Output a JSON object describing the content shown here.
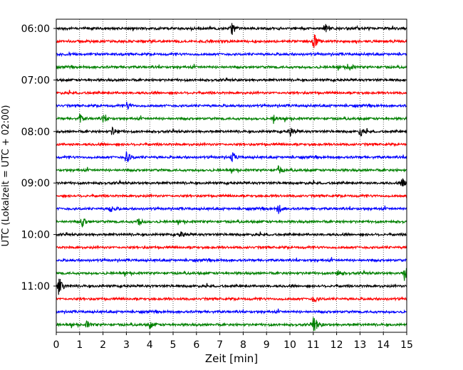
{
  "chart_data": {
    "type": "line",
    "xlabel": "Zeit  [min]",
    "ylabel": "UTC (Lokalzeit = UTC + 02:00)",
    "xlim": [
      0,
      15
    ],
    "x_ticks": [
      0,
      1,
      2,
      3,
      4,
      5,
      6,
      7,
      8,
      9,
      10,
      11,
      12,
      13,
      14,
      15
    ],
    "y_tick_labels": [
      "06:00",
      "07:00",
      "08:00",
      "09:00",
      "10:00",
      "11:00"
    ],
    "trace_start_times": [
      "06:00",
      "06:15",
      "06:30",
      "06:45",
      "07:00",
      "07:15",
      "07:30",
      "07:45",
      "08:00",
      "08:15",
      "08:30",
      "08:45",
      "09:00",
      "09:15",
      "09:30",
      "09:45",
      "10:00",
      "10:15",
      "10:30",
      "10:45",
      "11:00",
      "11:15",
      "11:30",
      "11:45"
    ],
    "trace_colors": [
      "#000000",
      "#ff0000",
      "#0000ff",
      "#008000"
    ],
    "grid_x": true,
    "grid_style": "dotted",
    "events": [
      {
        "trace": 0,
        "minute": 7.5,
        "amp": 0.55
      },
      {
        "trace": 0,
        "minute": 11.5,
        "amp": 0.4
      },
      {
        "trace": 1,
        "minute": 11.0,
        "amp": 0.8
      },
      {
        "trace": 3,
        "minute": 12.5,
        "amp": 0.35
      },
      {
        "trace": 6,
        "minute": 3.0,
        "amp": 0.35
      },
      {
        "trace": 7,
        "minute": 1.0,
        "amp": 0.3
      },
      {
        "trace": 7,
        "minute": 2.0,
        "amp": 0.3
      },
      {
        "trace": 7,
        "minute": 9.3,
        "amp": 0.35
      },
      {
        "trace": 8,
        "minute": 2.4,
        "amp": 0.45
      },
      {
        "trace": 8,
        "minute": 10.0,
        "amp": 0.4
      },
      {
        "trace": 8,
        "minute": 13.0,
        "amp": 0.4
      },
      {
        "trace": 10,
        "minute": 3.0,
        "amp": 0.65
      },
      {
        "trace": 10,
        "minute": 7.5,
        "amp": 0.45
      },
      {
        "trace": 11,
        "minute": 9.5,
        "amp": 0.3
      },
      {
        "trace": 12,
        "minute": 14.8,
        "amp": 0.45
      },
      {
        "trace": 14,
        "minute": 2.3,
        "amp": 0.4
      },
      {
        "trace": 14,
        "minute": 9.5,
        "amp": 0.4
      },
      {
        "trace": 15,
        "minute": 1.1,
        "amp": 0.5
      },
      {
        "trace": 15,
        "minute": 3.5,
        "amp": 0.4
      },
      {
        "trace": 16,
        "minute": 5.3,
        "amp": 0.3
      },
      {
        "trace": 19,
        "minute": 12.0,
        "amp": 0.35
      },
      {
        "trace": 19,
        "minute": 14.9,
        "amp": 0.75
      },
      {
        "trace": 20,
        "minute": 0.1,
        "amp": 0.85
      },
      {
        "trace": 21,
        "minute": 11.0,
        "amp": 0.35
      },
      {
        "trace": 23,
        "minute": 11.0,
        "amp": 0.9
      },
      {
        "trace": 23,
        "minute": 1.3,
        "amp": 0.3
      },
      {
        "trace": 23,
        "minute": 4.0,
        "amp": 0.3
      }
    ]
  }
}
